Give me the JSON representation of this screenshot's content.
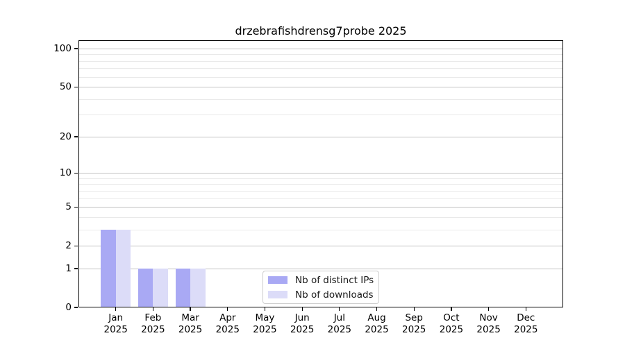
{
  "chart_data": {
    "type": "bar",
    "title": "drzebrafishdrensg7probe 2025",
    "categories": [
      "Jan",
      "Feb",
      "Mar",
      "Apr",
      "May",
      "Jun",
      "Jul",
      "Aug",
      "Sep",
      "Oct",
      "Nov",
      "Dec"
    ],
    "category_year": "2025",
    "series": [
      {
        "name": "Nb of distinct IPs",
        "color": "#a9a9f4",
        "values": [
          3,
          1,
          1,
          0,
          0,
          0,
          0,
          0,
          0,
          0,
          0,
          0
        ]
      },
      {
        "name": "Nb of downloads",
        "color": "#dcdcf8",
        "values": [
          3,
          1,
          1,
          0,
          0,
          0,
          0,
          0,
          0,
          0,
          0,
          0
        ]
      }
    ],
    "y_scale": "log1p",
    "y_ticks": [
      0,
      1,
      2,
      5,
      10,
      20,
      50,
      100
    ],
    "y_minor_ticks": [
      3,
      4,
      6,
      7,
      8,
      9,
      30,
      40,
      60,
      70,
      80,
      90
    ],
    "ylim": [
      0,
      120
    ],
    "xlabel": "",
    "ylabel": "",
    "grid": "on",
    "legend_position": "lower center",
    "colors": {
      "major_grid": "#c2c2c2",
      "minor_grid": "#e9e9e9",
      "spine": "#000000",
      "text": "#000000"
    }
  }
}
